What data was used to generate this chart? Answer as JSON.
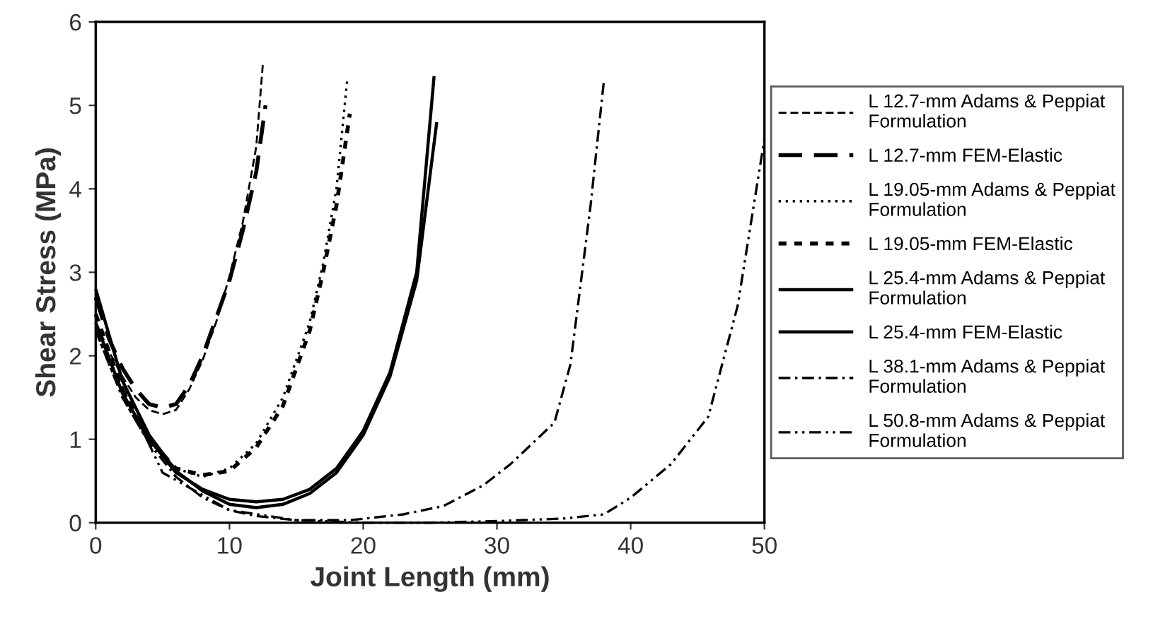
{
  "chart_data": {
    "type": "line",
    "xlabel": "Joint Length (mm)",
    "ylabel": "Shear Stress (MPa)",
    "xlim": [
      0,
      50
    ],
    "ylim": [
      0,
      6
    ],
    "xticks": [
      0,
      10,
      20,
      30,
      40,
      50
    ],
    "yticks": [
      0,
      1,
      2,
      3,
      4,
      5,
      6
    ],
    "grid": false,
    "legend": "right",
    "marker": "none",
    "series": [
      {
        "name": "L 12.7-mm Adams & Peppiat Formulation",
        "color": "#000000",
        "line_style": "dashed",
        "x": [
          0,
          1,
          2,
          3,
          4,
          5,
          6,
          7,
          8,
          9,
          10,
          11,
          12,
          12.5
        ],
        "values": [
          2.4,
          2.05,
          1.75,
          1.5,
          1.35,
          1.3,
          1.35,
          1.6,
          1.95,
          2.4,
          2.95,
          3.6,
          4.5,
          5.5
        ]
      },
      {
        "name": "L 12.7-mm FEM-Elastic",
        "color": "#000000",
        "line_style": "longdashed",
        "x": [
          0,
          1,
          2,
          3,
          4,
          5,
          6,
          7,
          8,
          9,
          10,
          11,
          12,
          12.7
        ],
        "values": [
          2.7,
          2.2,
          1.85,
          1.6,
          1.42,
          1.38,
          1.42,
          1.65,
          2.0,
          2.45,
          2.9,
          3.5,
          4.2,
          5.0
        ]
      },
      {
        "name": "L 19.05-mm Adams & Peppiat Formulation",
        "color": "#000000",
        "line_style": "dotted",
        "x": [
          0,
          2,
          4,
          6,
          8,
          10,
          12,
          14,
          16,
          17,
          18,
          18.8
        ],
        "values": [
          2.3,
          1.5,
          0.95,
          0.65,
          0.55,
          0.65,
          0.95,
          1.5,
          2.4,
          3.1,
          4.0,
          5.3
        ]
      },
      {
        "name": "L 19.05-mm FEM-Elastic",
        "color": "#000000",
        "line_style": "shortdashed",
        "x": [
          0,
          2,
          4,
          6,
          8,
          10,
          12,
          14,
          16,
          17,
          18,
          19
        ],
        "values": [
          2.5,
          1.6,
          1.0,
          0.65,
          0.57,
          0.62,
          0.9,
          1.4,
          2.3,
          3.0,
          3.8,
          4.9
        ]
      },
      {
        "name": "L 25.4-mm Adams & Peppiat Formulation",
        "color": "#000000",
        "line_style": "solid",
        "x": [
          0,
          2,
          4,
          6,
          8,
          10,
          12,
          14,
          16,
          18,
          20,
          22,
          24,
          25.3
        ],
        "values": [
          2.4,
          1.55,
          1.0,
          0.6,
          0.4,
          0.28,
          0.25,
          0.28,
          0.4,
          0.65,
          1.1,
          1.8,
          3.0,
          5.35
        ]
      },
      {
        "name": "L 25.4-mm FEM-Elastic",
        "color": "#000000",
        "line_style": "solid",
        "x": [
          0,
          2,
          4,
          6,
          8,
          10,
          12,
          14,
          16,
          18,
          20,
          22,
          24,
          25.5
        ],
        "values": [
          2.8,
          1.7,
          1.05,
          0.62,
          0.38,
          0.22,
          0.18,
          0.22,
          0.35,
          0.6,
          1.05,
          1.75,
          2.9,
          4.8
        ]
      },
      {
        "name": "L 38.1-mm Adams & Peppiat Formulation",
        "color": "#000000",
        "line_style": "dashdot",
        "x": [
          0,
          2,
          4,
          6,
          8,
          10,
          12,
          15,
          19,
          23,
          26,
          29,
          31,
          34.3,
          35.5,
          37,
          38
        ],
        "values": [
          2.3,
          1.5,
          0.95,
          0.55,
          0.3,
          0.15,
          0.08,
          0.03,
          0.03,
          0.1,
          0.2,
          0.45,
          0.7,
          1.2,
          1.9,
          3.8,
          5.3
        ]
      },
      {
        "name": "L 50.8-mm Adams & Peppiat Formulation",
        "color": "#000000",
        "line_style": "dashdotdot",
        "x": [
          0,
          5,
          10,
          15,
          20,
          25,
          30,
          35,
          38,
          40,
          43,
          45.8,
          48,
          50
        ],
        "values": [
          2.3,
          0.6,
          0.15,
          0.03,
          0.0,
          0.0,
          0.02,
          0.05,
          0.1,
          0.3,
          0.7,
          1.27,
          2.6,
          4.6
        ]
      }
    ]
  }
}
